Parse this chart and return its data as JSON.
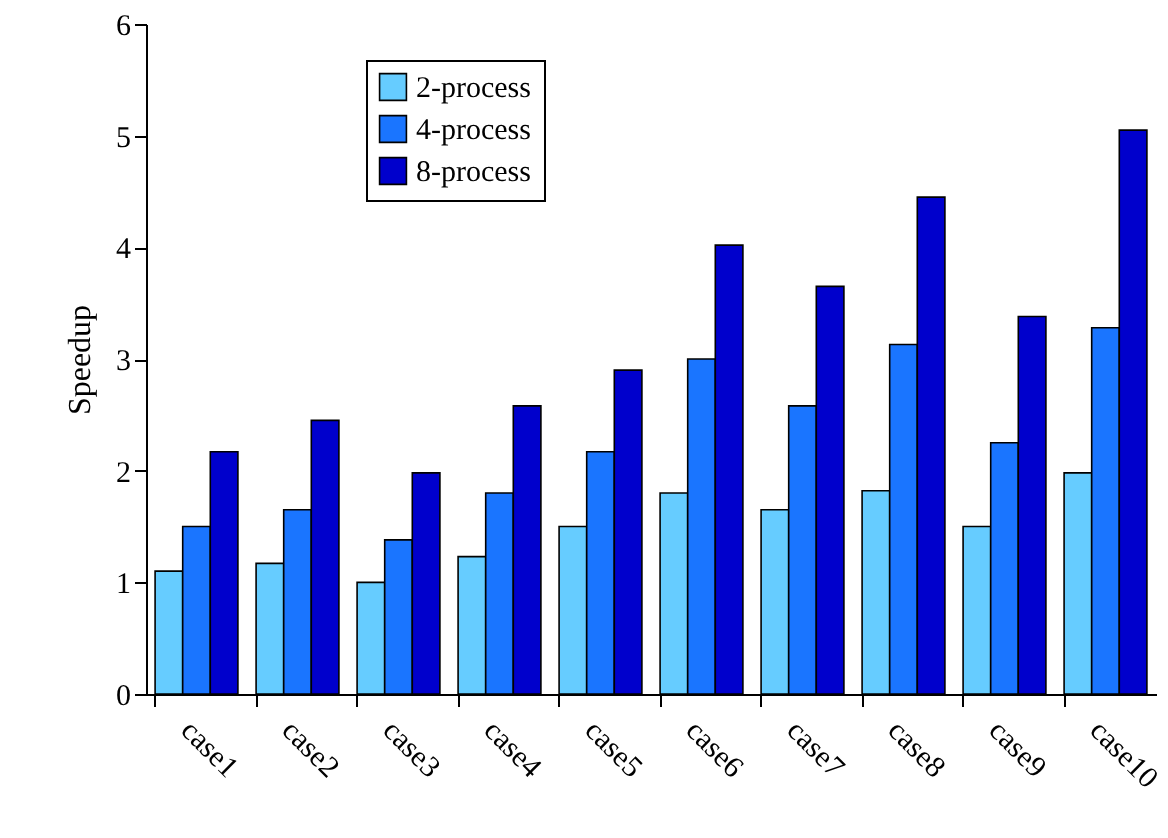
{
  "chart_data": {
    "type": "bar",
    "ylabel": "Speedup",
    "categories": [
      "case1",
      "case2",
      "case3",
      "case4",
      "case5",
      "case6",
      "case7",
      "case8",
      "case9",
      "case10"
    ],
    "series": [
      {
        "name": "2-process",
        "color": "#66ccff",
        "values": [
          1.1,
          1.17,
          1.0,
          1.23,
          1.5,
          1.8,
          1.65,
          1.82,
          1.5,
          1.98
        ]
      },
      {
        "name": "4-process",
        "color": "#1a75ff",
        "values": [
          1.5,
          1.65,
          1.38,
          1.8,
          2.17,
          3.0,
          2.58,
          3.13,
          2.25,
          3.28
        ]
      },
      {
        "name": "8-process",
        "color": "#0000cc",
        "values": [
          2.17,
          2.45,
          1.98,
          2.58,
          2.9,
          4.02,
          3.65,
          4.45,
          3.38,
          5.05
        ]
      }
    ],
    "ylim": [
      0,
      6
    ],
    "yticks": [
      0,
      1,
      2,
      3,
      4,
      5,
      6
    ],
    "legend": "top left"
  }
}
